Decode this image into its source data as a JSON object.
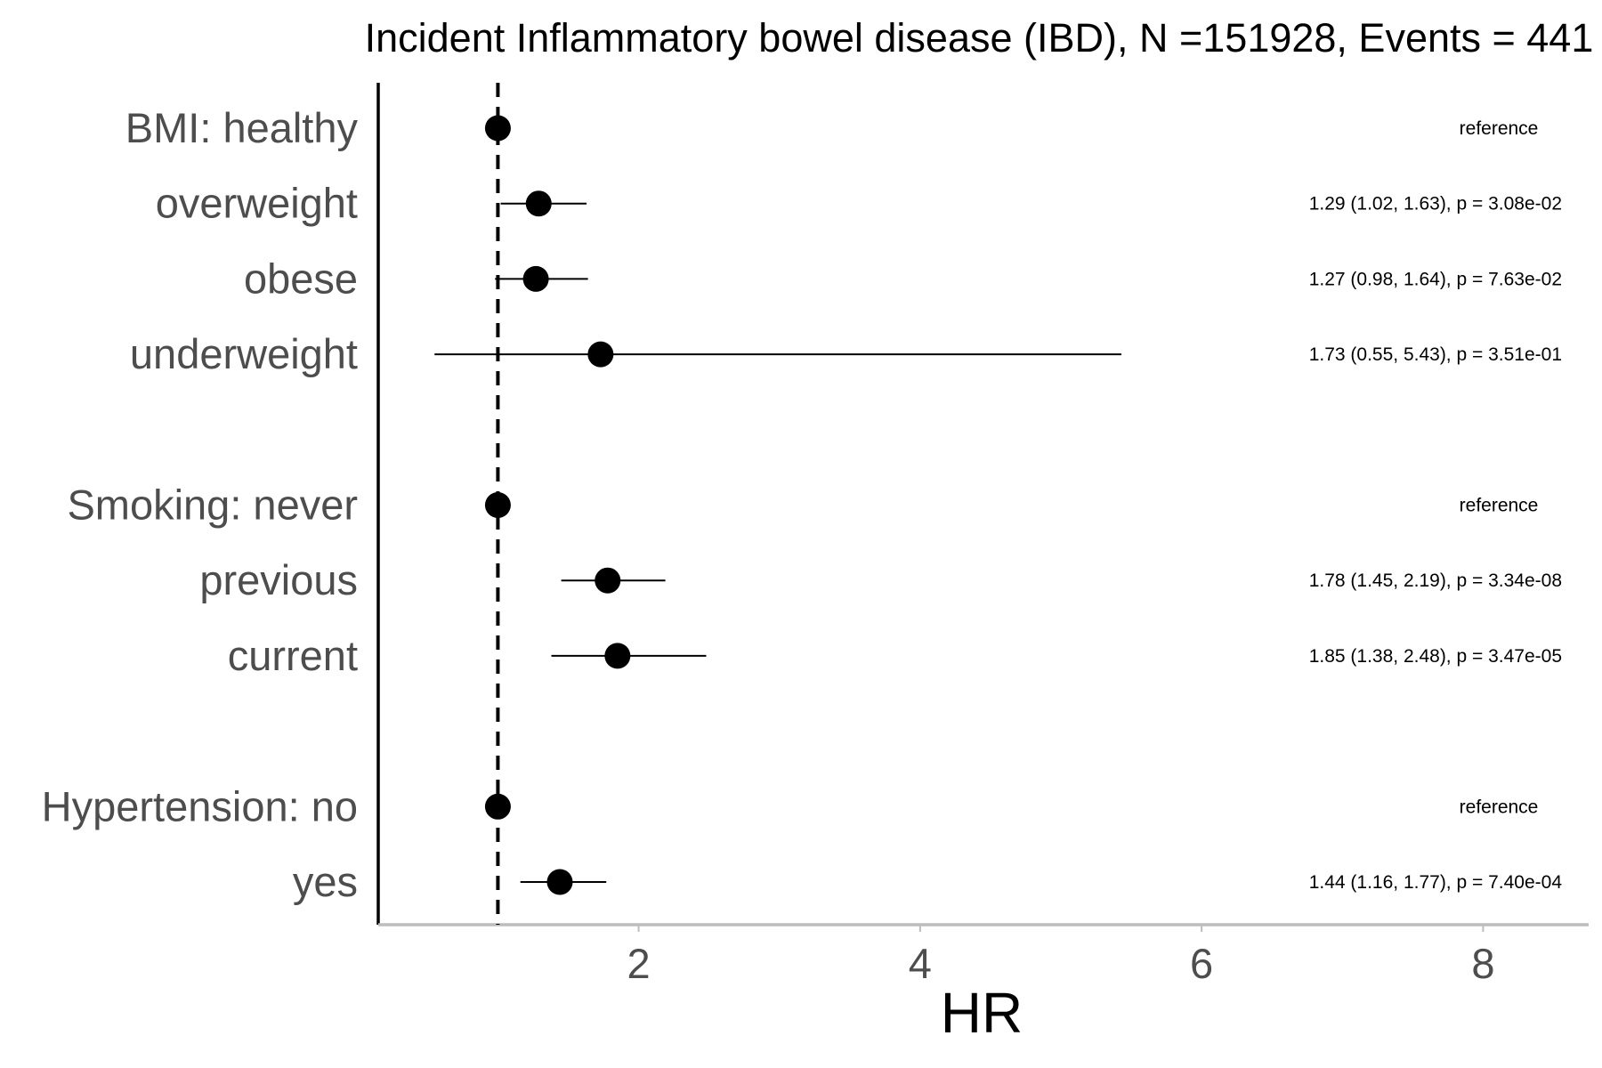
{
  "chart_data": {
    "type": "forest",
    "title": "Incident Inflammatory bowel disease (IBD), N =151928, Events = 441",
    "xlabel": "HR",
    "xlim": [
      0.15,
      8.75
    ],
    "xticks": [
      2,
      4,
      6,
      8
    ],
    "reference_line": 1,
    "colors": {
      "point": "#000000",
      "label": "#4d4d4d",
      "axis_bottom": "#bdbdbd",
      "axis_left": "#000000"
    },
    "rows": [
      {
        "label": "BMI: healthy",
        "hr": 1.0,
        "lo": null,
        "hi": null,
        "annotation": "reference"
      },
      {
        "label": "overweight",
        "hr": 1.29,
        "lo": 1.02,
        "hi": 1.63,
        "annotation": "1.29 (1.02, 1.63), p = 3.08e-02"
      },
      {
        "label": "obese",
        "hr": 1.27,
        "lo": 0.98,
        "hi": 1.64,
        "annotation": "1.27 (0.98, 1.64), p = 7.63e-02"
      },
      {
        "label": "underweight",
        "hr": 1.73,
        "lo": 0.55,
        "hi": 5.43,
        "annotation": "1.73 (0.55, 5.43), p = 3.51e-01"
      },
      {
        "label": "",
        "hr": null,
        "lo": null,
        "hi": null,
        "annotation": ""
      },
      {
        "label": "Smoking: never",
        "hr": 1.0,
        "lo": null,
        "hi": null,
        "annotation": "reference"
      },
      {
        "label": "previous",
        "hr": 1.78,
        "lo": 1.45,
        "hi": 2.19,
        "annotation": "1.78 (1.45, 2.19), p = 3.34e-08"
      },
      {
        "label": "current",
        "hr": 1.85,
        "lo": 1.38,
        "hi": 2.48,
        "annotation": "1.85 (1.38, 2.48), p = 3.47e-05"
      },
      {
        "label": "",
        "hr": null,
        "lo": null,
        "hi": null,
        "annotation": ""
      },
      {
        "label": "Hypertension: no",
        "hr": 1.0,
        "lo": null,
        "hi": null,
        "annotation": "reference"
      },
      {
        "label": "yes",
        "hr": 1.44,
        "lo": 1.16,
        "hi": 1.77,
        "annotation": "1.44 (1.16, 1.77), p = 7.40e-04"
      }
    ]
  }
}
